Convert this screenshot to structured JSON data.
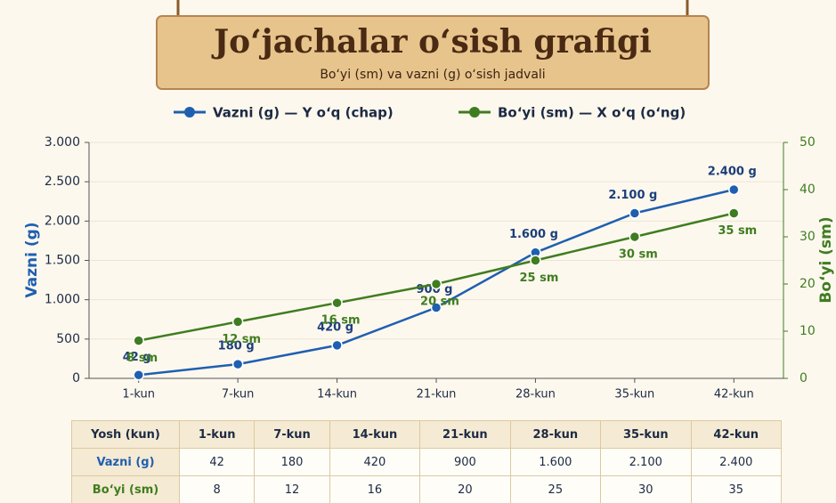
{
  "chart_data": {
    "type": "line",
    "title": "Jo‘jachalar o‘sish grafigi",
    "subtitle": "Bo‘yi (sm) va vazni (g) o‘sish jadvali",
    "y_label": "Vazni (g)",
    "y2_label": "Bo‘yi (sm)",
    "categories": [
      "1-kun",
      "7-kun",
      "14-kun",
      "21-kun",
      "28-kun",
      "35-kun",
      "42-kun"
    ],
    "series": [
      {
        "name": "Vazni (g) — Y o‘q (chap)",
        "color": "#1f5fb0",
        "axis": "y",
        "values": [
          42,
          180,
          420,
          900,
          1600,
          2100,
          2400
        ],
        "value_labels": [
          "42 g",
          "180 g",
          "420 g",
          "900 g",
          "1.600 g",
          "2.100 g",
          "2.400 g"
        ]
      },
      {
        "name": "Bo‘yi (sm) — X o‘q (o‘ng)",
        "color": "#3f7d20",
        "axis": "y2",
        "values": [
          8,
          12,
          16,
          20,
          25,
          30,
          35
        ],
        "value_labels": [
          "8 sm",
          "12 sm",
          "16 sm",
          "20 sm",
          "25 sm",
          "30 sm",
          "35 sm"
        ]
      }
    ],
    "ylim": [
      0,
      3000
    ],
    "yticks": [
      0,
      {
        "value": 500,
        "label": "500"
      },
      {
        "value": 1000,
        "label": "1.000"
      },
      {
        "value": 1500,
        "label": "1.500"
      },
      {
        "value": 2000,
        "label": "2.000"
      },
      {
        "value": 2500,
        "label": "2.500"
      },
      {
        "value": 3000,
        "label": "3.000"
      }
    ],
    "y2lim": [
      0,
      50
    ],
    "y2ticks": [
      0,
      10,
      20,
      30,
      40,
      50
    ],
    "grid": true
  },
  "table": {
    "rows": [
      [
        "Yosh (kun)",
        "1-kun",
        "7-kun",
        "14-kun",
        "21-kun",
        "28-kun",
        "35-kun",
        "42-kun"
      ],
      [
        "Vazni (g)",
        "42",
        "180",
        "420",
        "900",
        "1.600",
        "2.100",
        "2.400"
      ],
      [
        "Bo‘yi (sm)",
        "8",
        "12",
        "16",
        "20",
        "25",
        "30",
        "35"
      ]
    ]
  }
}
